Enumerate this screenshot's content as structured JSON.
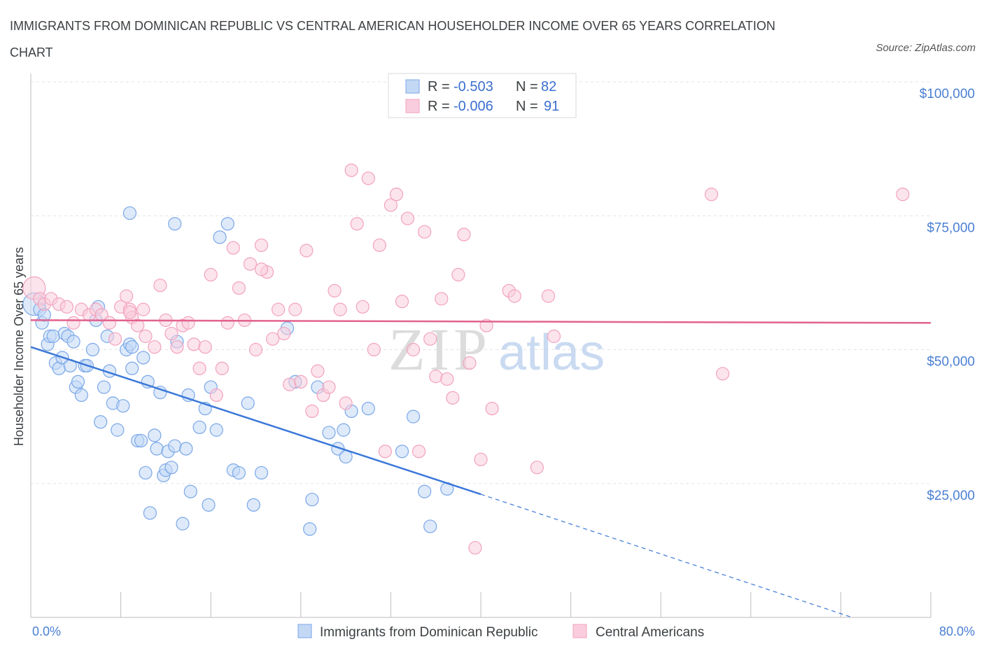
{
  "title": "IMMIGRANTS FROM DOMINICAN REPUBLIC VS CENTRAL AMERICAN HOUSEHOLDER INCOME OVER 65 YEARS CORRELATION CHART",
  "source": "Source: ZipAtlas.com",
  "watermark": {
    "zip": "ZIP",
    "atlas": "atlas"
  },
  "colors": {
    "blue": "#7aa7e8",
    "blue_line": "#3b78d8",
    "pink": "#f2a2bf",
    "pink_line": "#e2628f",
    "axis_text": "#4a7fd4"
  },
  "legend": {
    "rows": [
      {
        "r_label": "R =",
        "r_value": "-0.503",
        "n_label": "N =",
        "n_value": "82"
      },
      {
        "r_label": "R =",
        "r_value": "-0.006",
        "n_label": "N =",
        "n_value": "91"
      }
    ]
  },
  "chart_data": {
    "type": "scatter",
    "ylabel": "Householder Income Over 65 years",
    "xlim": [
      0,
      80
    ],
    "ylim": [
      0,
      100000
    ],
    "x_tick_labels": [
      "0.0%",
      "80.0%"
    ],
    "y_ticks": [
      25000,
      50000,
      75000,
      100000
    ],
    "y_tick_labels": [
      "$25,000",
      "$50,000",
      "$75,000",
      "$100,000"
    ],
    "grid": true,
    "legend_position": "top-center and bottom",
    "series": [
      {
        "name": "Immigrants from Dominican Republic",
        "color": "#7aa7e8",
        "trend": {
          "x": [
            0,
            40,
            73
          ],
          "y": [
            50500,
            23000,
            0
          ],
          "solid_until_x": 40
        },
        "points": [
          [
            0.3,
            58500
          ],
          [
            0.8,
            57500
          ],
          [
            1.0,
            55000
          ],
          [
            1.2,
            56500
          ],
          [
            1.5,
            51000
          ],
          [
            1.7,
            52500
          ],
          [
            2.0,
            52500
          ],
          [
            2.2,
            47500
          ],
          [
            2.5,
            46500
          ],
          [
            2.8,
            48500
          ],
          [
            3.0,
            53000
          ],
          [
            3.3,
            52500
          ],
          [
            3.5,
            47000
          ],
          [
            3.8,
            51500
          ],
          [
            4.0,
            43000
          ],
          [
            4.2,
            44000
          ],
          [
            4.5,
            41500
          ],
          [
            4.8,
            47000
          ],
          [
            5.0,
            47000
          ],
          [
            5.5,
            50000
          ],
          [
            5.8,
            55500
          ],
          [
            6.0,
            58000
          ],
          [
            6.2,
            36500
          ],
          [
            6.5,
            43000
          ],
          [
            6.8,
            52500
          ],
          [
            7.0,
            46000
          ],
          [
            7.3,
            40000
          ],
          [
            7.7,
            35000
          ],
          [
            8.2,
            39500
          ],
          [
            8.5,
            50000
          ],
          [
            8.8,
            51000
          ],
          [
            9.0,
            46500
          ],
          [
            9.5,
            33000
          ],
          [
            9.8,
            33000
          ],
          [
            10.0,
            48500
          ],
          [
            10.2,
            27000
          ],
          [
            10.4,
            44000
          ],
          [
            10.6,
            19500
          ],
          [
            11.0,
            34000
          ],
          [
            11.2,
            31500
          ],
          [
            11.5,
            42000
          ],
          [
            11.8,
            26500
          ],
          [
            12.0,
            27500
          ],
          [
            12.2,
            31000
          ],
          [
            12.5,
            28000
          ],
          [
            12.8,
            32000
          ],
          [
            13.0,
            51500
          ],
          [
            13.5,
            17500
          ],
          [
            13.8,
            31500
          ],
          [
            14.0,
            41500
          ],
          [
            14.2,
            23500
          ],
          [
            15.0,
            35500
          ],
          [
            15.5,
            39000
          ],
          [
            15.8,
            21000
          ],
          [
            16.0,
            43000
          ],
          [
            16.8,
            71000
          ],
          [
            17.5,
            73500
          ],
          [
            18.0,
            27500
          ],
          [
            18.5,
            27000
          ],
          [
            19.3,
            40000
          ],
          [
            19.8,
            21000
          ],
          [
            20.5,
            27000
          ],
          [
            22.8,
            54000
          ],
          [
            23.5,
            44000
          ],
          [
            24.8,
            16500
          ],
          [
            25.0,
            22000
          ],
          [
            25.5,
            43000
          ],
          [
            26.5,
            34500
          ],
          [
            27.3,
            31500
          ],
          [
            27.8,
            35000
          ],
          [
            28.0,
            30000
          ],
          [
            28.5,
            38500
          ],
          [
            30.0,
            39000
          ],
          [
            33.0,
            31000
          ],
          [
            34.0,
            37500
          ],
          [
            35.0,
            23500
          ],
          [
            35.5,
            17000
          ],
          [
            37.0,
            24000
          ],
          [
            8.8,
            75500
          ],
          [
            12.8,
            73500
          ],
          [
            16.5,
            35000
          ],
          [
            9.0,
            50500
          ]
        ]
      },
      {
        "name": "Central Americans",
        "color": "#f2a2bf",
        "trend": {
          "x": [
            0,
            80
          ],
          "y": [
            55500,
            55000
          ]
        },
        "points": [
          [
            0.3,
            61500
          ],
          [
            0.8,
            59500
          ],
          [
            1.2,
            58500
          ],
          [
            1.8,
            59500
          ],
          [
            2.5,
            58500
          ],
          [
            3.2,
            58000
          ],
          [
            3.8,
            55000
          ],
          [
            4.5,
            57500
          ],
          [
            5.2,
            56500
          ],
          [
            5.8,
            57500
          ],
          [
            6.3,
            56500
          ],
          [
            7.0,
            55000
          ],
          [
            7.5,
            52000
          ],
          [
            8.0,
            58000
          ],
          [
            8.5,
            60000
          ],
          [
            8.8,
            57500
          ],
          [
            9.0,
            56000
          ],
          [
            9.5,
            54500
          ],
          [
            10.0,
            57500
          ],
          [
            10.2,
            52500
          ],
          [
            11.0,
            50500
          ],
          [
            11.5,
            62000
          ],
          [
            12.0,
            55500
          ],
          [
            12.5,
            53000
          ],
          [
            13.0,
            50500
          ],
          [
            13.5,
            54500
          ],
          [
            14.0,
            55000
          ],
          [
            14.5,
            51000
          ],
          [
            15.0,
            46500
          ],
          [
            15.5,
            50500
          ],
          [
            16.0,
            64000
          ],
          [
            16.5,
            41500
          ],
          [
            17.0,
            46500
          ],
          [
            17.5,
            55000
          ],
          [
            18.0,
            69000
          ],
          [
            18.5,
            61500
          ],
          [
            19.0,
            55500
          ],
          [
            19.5,
            66000
          ],
          [
            20.0,
            50000
          ],
          [
            20.5,
            69500
          ],
          [
            21.0,
            64500
          ],
          [
            21.5,
            52000
          ],
          [
            22.0,
            57500
          ],
          [
            22.5,
            53000
          ],
          [
            23.0,
            43500
          ],
          [
            23.5,
            57500
          ],
          [
            24.0,
            44000
          ],
          [
            24.5,
            68500
          ],
          [
            25.0,
            38500
          ],
          [
            25.5,
            46000
          ],
          [
            26.0,
            41500
          ],
          [
            26.5,
            43000
          ],
          [
            27.0,
            61000
          ],
          [
            27.5,
            57500
          ],
          [
            28.0,
            40000
          ],
          [
            28.5,
            83500
          ],
          [
            29.0,
            73500
          ],
          [
            29.5,
            58000
          ],
          [
            30.0,
            82000
          ],
          [
            30.5,
            50000
          ],
          [
            31.0,
            69500
          ],
          [
            31.5,
            31000
          ],
          [
            32.0,
            77000
          ],
          [
            32.5,
            79000
          ],
          [
            33.0,
            59000
          ],
          [
            33.5,
            74500
          ],
          [
            34.0,
            50000
          ],
          [
            34.5,
            31000
          ],
          [
            35.0,
            72000
          ],
          [
            35.5,
            52000
          ],
          [
            36.0,
            45000
          ],
          [
            36.5,
            59500
          ],
          [
            37.0,
            44500
          ],
          [
            37.5,
            41000
          ],
          [
            38.0,
            64000
          ],
          [
            38.5,
            71500
          ],
          [
            39.0,
            47500
          ],
          [
            40.0,
            29500
          ],
          [
            40.5,
            54500
          ],
          [
            41.0,
            39000
          ],
          [
            42.5,
            61000
          ],
          [
            43.0,
            60000
          ],
          [
            45.0,
            28000
          ],
          [
            46.0,
            60000
          ],
          [
            46.5,
            52500
          ],
          [
            60.5,
            79000
          ],
          [
            61.5,
            45500
          ],
          [
            77.5,
            79000
          ],
          [
            8.8,
            57000
          ],
          [
            20.5,
            65000
          ],
          [
            39.5,
            13000
          ]
        ]
      }
    ]
  }
}
